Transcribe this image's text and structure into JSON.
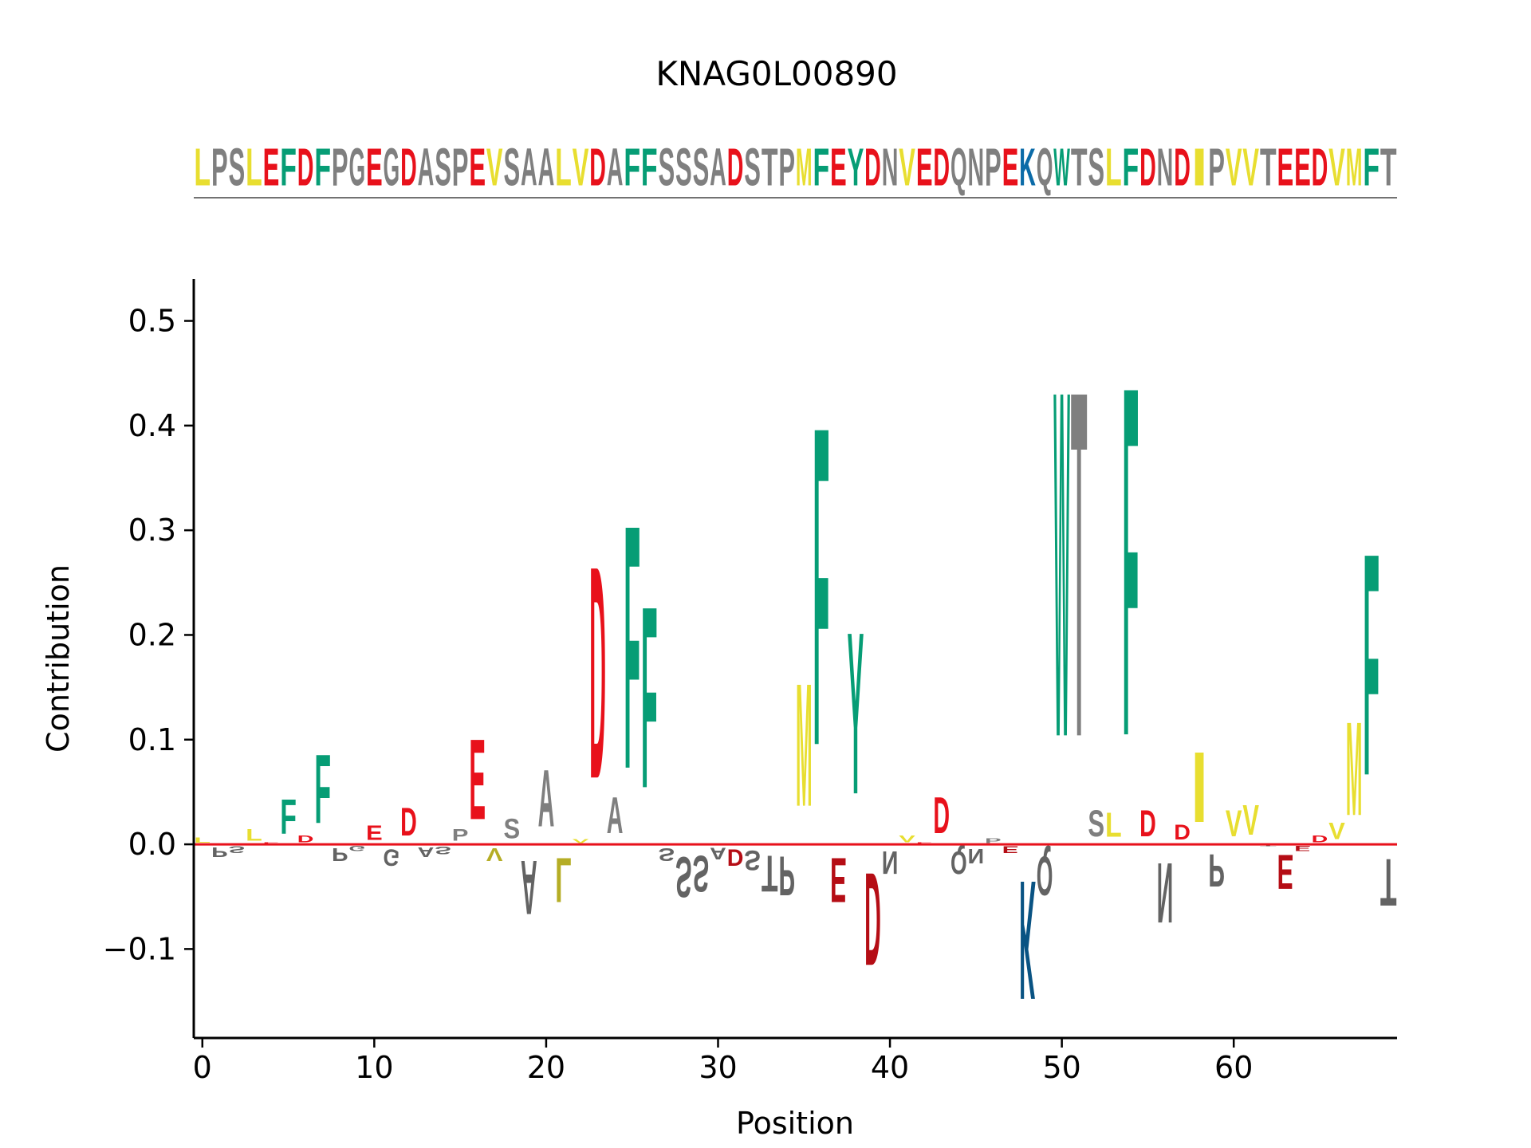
{
  "chart_data": {
    "type": "sequence-logo",
    "title": "KNAG0L00890",
    "sequence": "LPSLEFDFPGEGDASPEVSAALVDAFFSSSADSTPMFEYDNVEDQNPEKQWTSLFDNDIPVVTEEDVMFT",
    "xlabel": "Position",
    "ylabel": "Contribution",
    "xlim": [
      -0.5,
      69.5
    ],
    "ylim": [
      -0.185,
      0.54
    ],
    "xticks": [
      0,
      10,
      20,
      30,
      40,
      50,
      60
    ],
    "xtick_labels": [
      "0",
      "10",
      "20",
      "30",
      "40",
      "50",
      "60"
    ],
    "yticks": [
      -0.1,
      0.0,
      0.1,
      0.2,
      0.3,
      0.4,
      0.5
    ],
    "ytick_labels": [
      "−0.1",
      "0.0",
      "0.1",
      "0.2",
      "0.3",
      "0.4",
      "0.5"
    ],
    "baseline_color": "#e8111b",
    "colors": {
      "hydrophobic": "#e8de30",
      "acidic": "#e8111b",
      "aromatic": "#069d75",
      "basic": "#0b6ba8",
      "other": "#7f7f7f"
    },
    "residue_class": {
      "L": "hydrophobic",
      "V": "hydrophobic",
      "I": "hydrophobic",
      "M": "hydrophobic",
      "A": "other",
      "E": "acidic",
      "D": "acidic",
      "F": "aromatic",
      "W": "aromatic",
      "Y": "aromatic",
      "K": "basic",
      "R": "basic",
      "H": "basic",
      "P": "other",
      "S": "other",
      "G": "other",
      "T": "other",
      "N": "other",
      "Q": "other",
      "C": "other"
    },
    "contributions": [
      0.008,
      -0.015,
      -0.01,
      0.018,
      0.002,
      0.053,
      0.01,
      0.105,
      -0.02,
      -0.008,
      0.022,
      -0.025,
      0.043,
      -0.015,
      -0.012,
      0.018,
      0.123,
      -0.02,
      0.03,
      -0.082,
      0.087,
      -0.068,
      0.006,
      0.325,
      0.055,
      0.373,
      0.278,
      -0.02,
      -0.062,
      -0.055,
      -0.018,
      -0.025,
      -0.03,
      -0.055,
      -0.06,
      0.188,
      0.488,
      -0.068,
      0.248,
      -0.142,
      -0.035,
      0.01,
      0.002,
      0.055,
      -0.035,
      -0.022,
      0.007,
      -0.01,
      -0.182,
      -0.06,
      0.53,
      0.53,
      0.04,
      0.037,
      0.535,
      0.04,
      -0.092,
      0.023,
      0.108,
      -0.05,
      0.04,
      0.046,
      -0.002,
      -0.052,
      -0.008,
      0.01,
      0.025,
      0.143,
      0.34,
      -0.072
    ]
  }
}
